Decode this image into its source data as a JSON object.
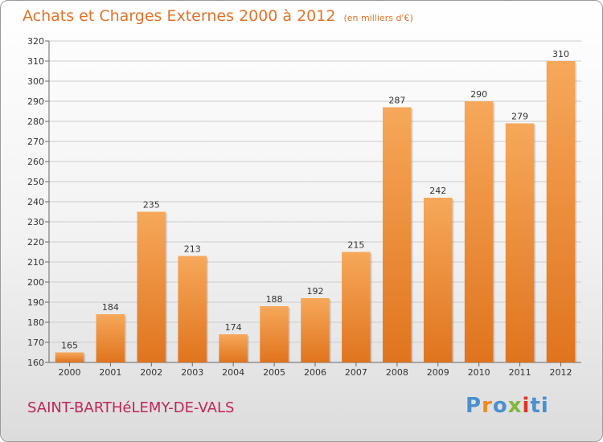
{
  "colors": {
    "title": "#e0732a",
    "commune": "#c0245c",
    "bar_top": "#f6a85a",
    "bar_bottom": "#e0741e",
    "grid": "#cccccc",
    "logo_letters": [
      "#4a8fd1",
      "#f08a1c",
      "#4a8fd1",
      "#7fb83a",
      "#e0322a",
      "#4a8fd1"
    ]
  },
  "header": {
    "title": "Achats et Charges Externes 2000 à 2012",
    "unit": "(en milliers d'€)"
  },
  "footer": {
    "commune": "SAINT-BARTHéLEMY-DE-VALS",
    "logo": "Proxiti"
  },
  "chart_data": {
    "type": "bar",
    "title": "Achats et Charges Externes 2000 à 2012",
    "unit": "(en milliers d'€)",
    "categories": [
      "2000",
      "2001",
      "2002",
      "2003",
      "2004",
      "2005",
      "2006",
      "2007",
      "2008",
      "2009",
      "2010",
      "2011",
      "2012"
    ],
    "values": [
      165,
      184,
      235,
      213,
      174,
      188,
      192,
      215,
      287,
      242,
      290,
      279,
      310
    ],
    "ylim": [
      160,
      320
    ],
    "ytick_step": 10,
    "grid": true,
    "legend": "none"
  }
}
